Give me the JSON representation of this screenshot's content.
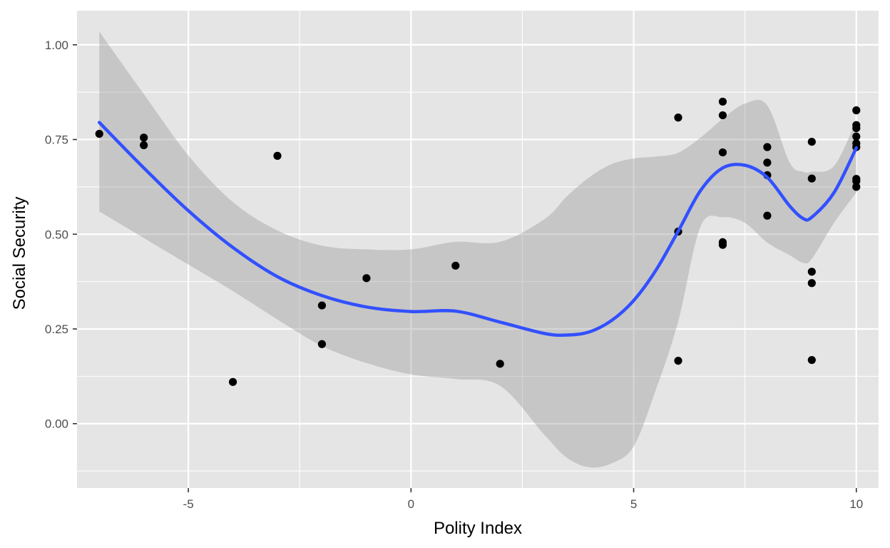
{
  "chart_data": {
    "type": "scatter",
    "title": "",
    "xlabel": "Polity Index",
    "ylabel": "Social Security",
    "xlim": [
      -7.5,
      10.5
    ],
    "ylim": [
      -0.17,
      1.09
    ],
    "x_ticks": [
      -5,
      0,
      5,
      10
    ],
    "x_tick_labels": [
      "-5",
      "0",
      "5",
      "10"
    ],
    "y_ticks": [
      0,
      0.25,
      0.5,
      0.75,
      1
    ],
    "y_tick_labels": [
      "0.00",
      "0.25",
      "0.50",
      "0.75",
      "1.00"
    ],
    "grid": true,
    "points": [
      {
        "x": -7,
        "y": 0.765
      },
      {
        "x": -6,
        "y": 0.755
      },
      {
        "x": -6,
        "y": 0.735
      },
      {
        "x": -4,
        "y": 0.11
      },
      {
        "x": -3,
        "y": 0.707
      },
      {
        "x": -2,
        "y": 0.312
      },
      {
        "x": -2,
        "y": 0.21
      },
      {
        "x": -1,
        "y": 0.384
      },
      {
        "x": 1,
        "y": 0.417
      },
      {
        "x": 2,
        "y": 0.158
      },
      {
        "x": 6,
        "y": 0.808
      },
      {
        "x": 6,
        "y": 0.507
      },
      {
        "x": 6,
        "y": 0.166
      },
      {
        "x": 7,
        "y": 0.85
      },
      {
        "x": 7,
        "y": 0.814
      },
      {
        "x": 7,
        "y": 0.716
      },
      {
        "x": 7,
        "y": 0.479
      },
      {
        "x": 7,
        "y": 0.472
      },
      {
        "x": 8,
        "y": 0.73
      },
      {
        "x": 8,
        "y": 0.689
      },
      {
        "x": 8,
        "y": 0.656
      },
      {
        "x": 8,
        "y": 0.549
      },
      {
        "x": 9,
        "y": 0.744
      },
      {
        "x": 9,
        "y": 0.647
      },
      {
        "x": 9,
        "y": 0.401
      },
      {
        "x": 9,
        "y": 0.371
      },
      {
        "x": 9,
        "y": 0.168
      },
      {
        "x": 10,
        "y": 0.827
      },
      {
        "x": 10,
        "y": 0.788
      },
      {
        "x": 10,
        "y": 0.78
      },
      {
        "x": 10,
        "y": 0.758
      },
      {
        "x": 10,
        "y": 0.74
      },
      {
        "x": 10,
        "y": 0.73
      },
      {
        "x": 10,
        "y": 0.646
      },
      {
        "x": 10,
        "y": 0.64
      },
      {
        "x": 10,
        "y": 0.625
      }
    ],
    "smooth": {
      "method": "loess",
      "x": [
        -7.0,
        -6.0,
        -5.0,
        -4.0,
        -3.0,
        -2.0,
        -1.0,
        0.0,
        1.0,
        2.0,
        3.0,
        3.5,
        4.0,
        4.5,
        5.0,
        5.5,
        6.0,
        6.5,
        7.0,
        7.5,
        8.0,
        8.5,
        8.8,
        9.0,
        9.5,
        10.0
      ],
      "y": [
        0.795,
        0.675,
        0.562,
        0.465,
        0.388,
        0.338,
        0.308,
        0.296,
        0.297,
        0.268,
        0.238,
        0.234,
        0.242,
        0.272,
        0.325,
        0.405,
        0.508,
        0.615,
        0.675,
        0.682,
        0.65,
        0.575,
        0.542,
        0.545,
        0.61,
        0.728
      ],
      "lower": [
        0.56,
        0.49,
        0.42,
        0.35,
        0.275,
        0.205,
        0.16,
        0.13,
        0.118,
        0.1,
        -0.03,
        -0.09,
        -0.115,
        -0.105,
        -0.06,
        0.09,
        0.27,
        0.52,
        0.545,
        0.53,
        0.478,
        0.445,
        0.425,
        0.435,
        0.53,
        0.61
      ],
      "upper": [
        1.035,
        0.87,
        0.708,
        0.585,
        0.51,
        0.47,
        0.46,
        0.46,
        0.48,
        0.48,
        0.54,
        0.6,
        0.65,
        0.685,
        0.7,
        0.705,
        0.715,
        0.755,
        0.805,
        0.845,
        0.84,
        0.69,
        0.665,
        0.665,
        0.68,
        0.8
      ]
    },
    "colors": {
      "panel": "#e5e5e5",
      "grid_major": "#ffffff",
      "points": "#000000",
      "smooth_line": "#3250ff",
      "ribbon": "#999999"
    }
  }
}
